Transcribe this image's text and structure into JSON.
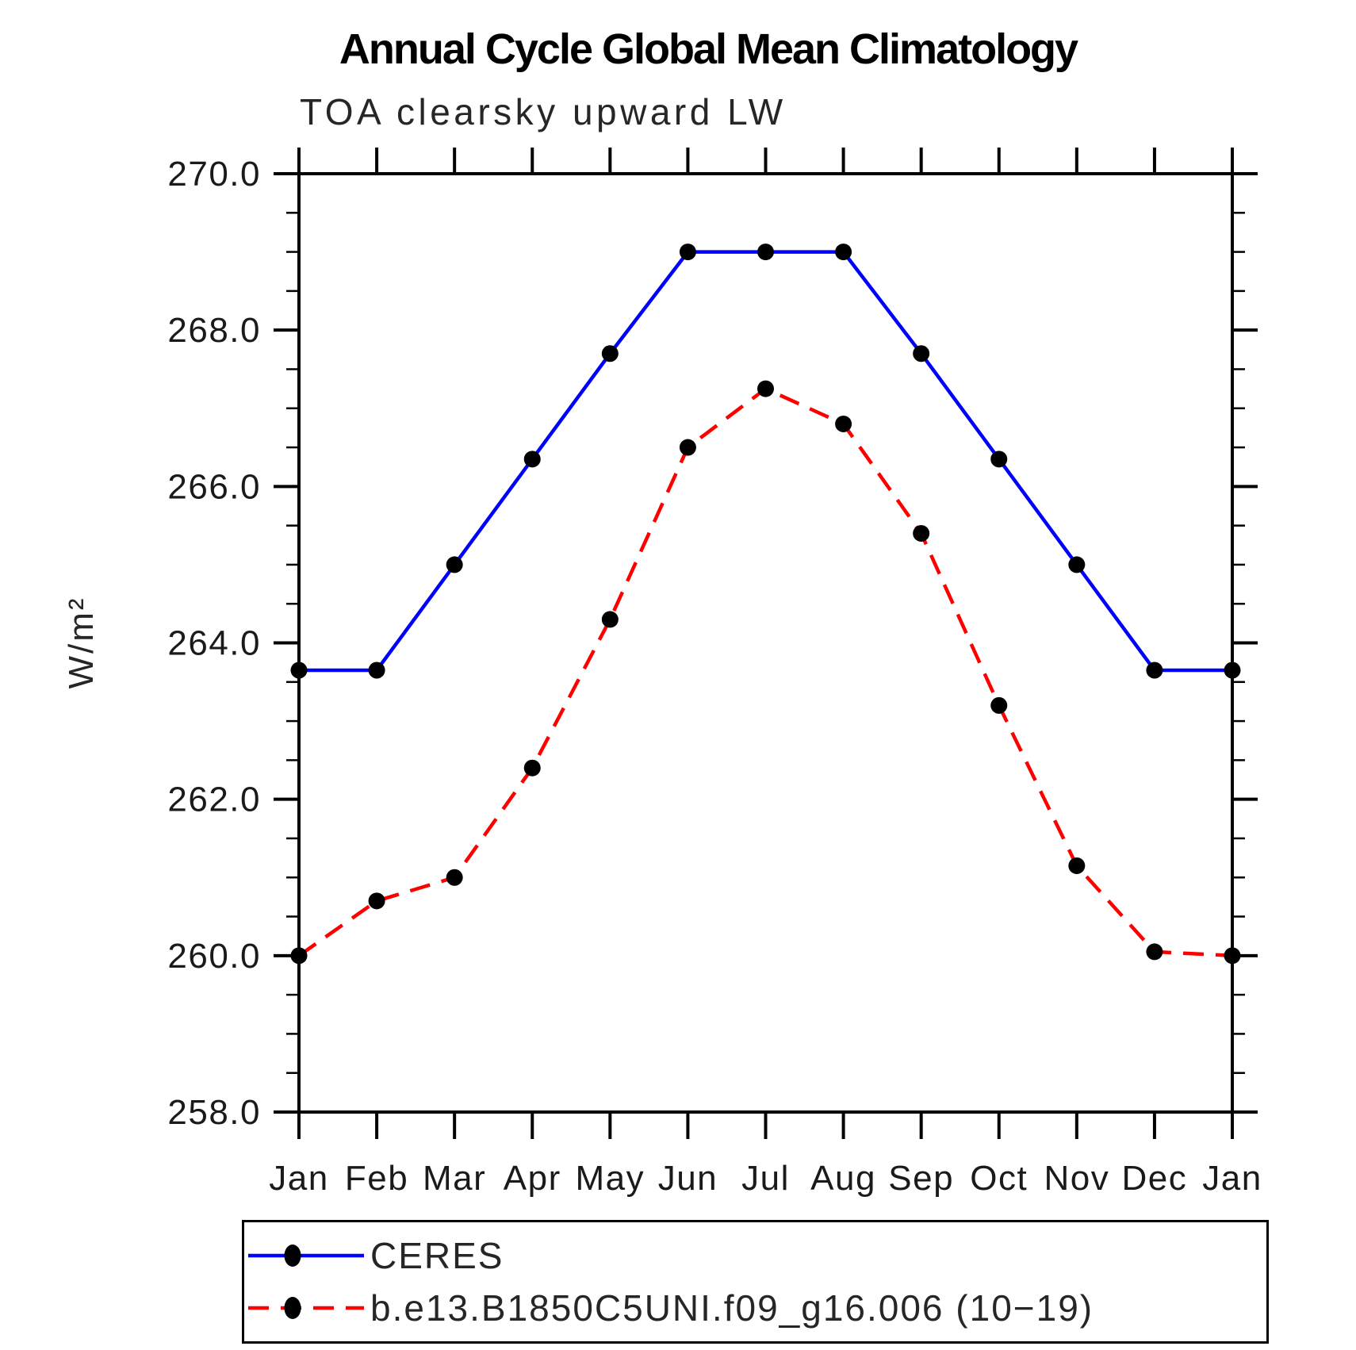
{
  "page": {
    "background": "#ffffff"
  },
  "chart_data": {
    "type": "line",
    "title": "Annual Cycle Global Mean Climatology",
    "subtitle": "TOA clearsky upward LW",
    "ylabel": "W/m²",
    "xlabel": "",
    "categories": [
      "Jan",
      "Feb",
      "Mar",
      "Apr",
      "May",
      "Jun",
      "Jul",
      "Aug",
      "Sep",
      "Oct",
      "Nov",
      "Dec",
      "Jan"
    ],
    "ylim": [
      258.0,
      270.0
    ],
    "ytick_major_interval": 2.0,
    "ytick_minor_interval": 0.5,
    "ytick_labels": [
      "258.0",
      "260.0",
      "262.0",
      "264.0",
      "266.0",
      "268.0",
      "270.0"
    ],
    "grid": false,
    "legend_position": "bottom",
    "axis_color": "#000000",
    "marker_color": "#000000",
    "series": [
      {
        "name": "CERES",
        "color": "#0000ff",
        "line_style": "solid",
        "marker": "filled-circle",
        "values": [
          263.65,
          263.65,
          265.0,
          266.35,
          267.7,
          269.0,
          269.0,
          269.0,
          267.7,
          266.35,
          265.0,
          263.65,
          263.65
        ]
      },
      {
        "name": "b.e13.B1850C5UNI.f09_g16.006 (10−19)",
        "color": "#ff0000",
        "line_style": "dashed",
        "marker": "filled-circle",
        "values": [
          260.0,
          260.7,
          261.0,
          262.4,
          264.3,
          266.5,
          267.25,
          266.8,
          265.4,
          263.2,
          261.15,
          260.05,
          260.0
        ]
      }
    ]
  }
}
